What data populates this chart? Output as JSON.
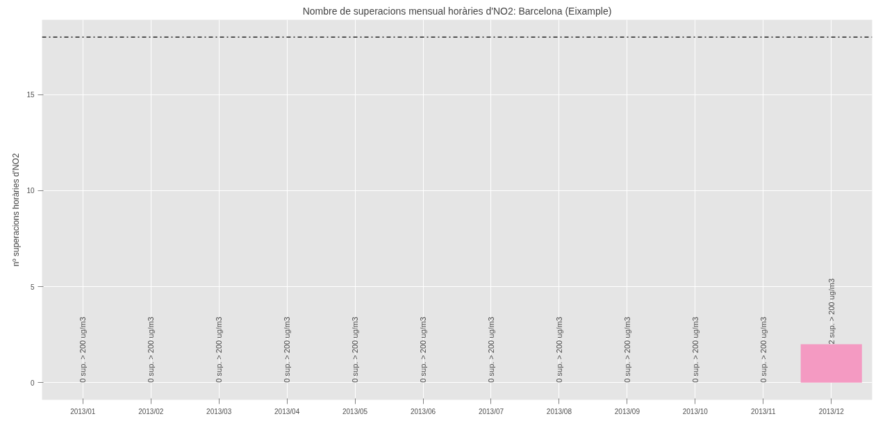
{
  "chart_data": {
    "type": "bar",
    "title": "Nombre de superacions mensual horàries d'NO2: Barcelona (Eixample)",
    "ylabel": "nº superacions horàries d'NO2",
    "categories": [
      "2013/01",
      "2013/02",
      "2013/03",
      "2013/04",
      "2013/05",
      "2013/06",
      "2013/07",
      "2013/08",
      "2013/09",
      "2013/10",
      "2013/11",
      "2013/12"
    ],
    "values": [
      0,
      0,
      0,
      0,
      0,
      0,
      0,
      0,
      0,
      0,
      0,
      2
    ],
    "value_labels": [
      "0 sup. > 200 ug/m3",
      "0 sup. > 200 ug/m3",
      "0 sup. > 200 ug/m3",
      "0 sup. > 200 ug/m3",
      "0 sup. > 200 ug/m3",
      "0 sup. > 200 ug/m3",
      "0 sup. > 200 ug/m3",
      "0 sup. > 200 ug/m3",
      "0 sup. > 200 ug/m3",
      "0 sup. > 200 ug/m3",
      "0 sup. > 200 ug/m3",
      "2 sup. > 200 ug/m3"
    ],
    "color": "#f49ac2",
    "ylim": [
      -0.9,
      18.9
    ],
    "yticks": [
      0,
      5,
      10,
      15
    ],
    "grid": true,
    "ref_lines": [
      {
        "axis": "y",
        "value": 18,
        "color": "#000000",
        "line_style": "dashdot"
      }
    ]
  }
}
